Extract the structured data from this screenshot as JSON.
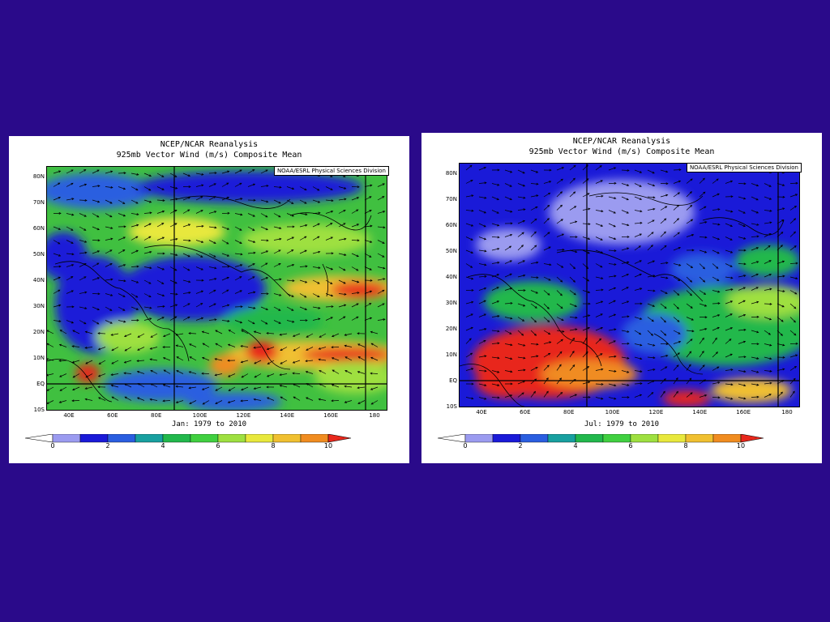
{
  "colorbar": {
    "ticks": [
      "0",
      "2",
      "4",
      "6",
      "8",
      "10"
    ],
    "colors": [
      "#9b9bf0",
      "#1a1ad8",
      "#2a5ee0",
      "#18a0a0",
      "#22b84c",
      "#40d040",
      "#9ee040",
      "#e8e83c",
      "#f0c030",
      "#f08c20",
      "#e8281c"
    ]
  },
  "panels": [
    {
      "id": "jan",
      "title_line1": "NCEP/NCAR Reanalysis",
      "title_line2": "925mb Vector Wind (m/s) Composite Mean",
      "credit": "NOAA/ESRL Physical Sciences Division",
      "period": "Jan: 1979 to 2010",
      "lat_labels": [
        "80N",
        "70N",
        "60N",
        "50N",
        "40N",
        "30N",
        "20N",
        "10N",
        "EQ",
        "10S"
      ],
      "lon_labels": [
        "40E",
        "60E",
        "80E",
        "100E",
        "120E",
        "140E",
        "160E",
        "180"
      ]
    },
    {
      "id": "jul",
      "title_line1": "NCEP/NCAR Reanalysis",
      "title_line2": "925mb Vector Wind (m/s) Composite Mean",
      "credit": "NOAA/ESRL Physical Sciences Division",
      "period": "Jul: 1979 to 2010",
      "lat_labels": [
        "80N",
        "70N",
        "60N",
        "50N",
        "40N",
        "30N",
        "20N",
        "10N",
        "EQ",
        "10S"
      ],
      "lon_labels": [
        "40E",
        "60E",
        "80E",
        "100E",
        "120E",
        "140E",
        "160E",
        "180"
      ]
    }
  ]
}
